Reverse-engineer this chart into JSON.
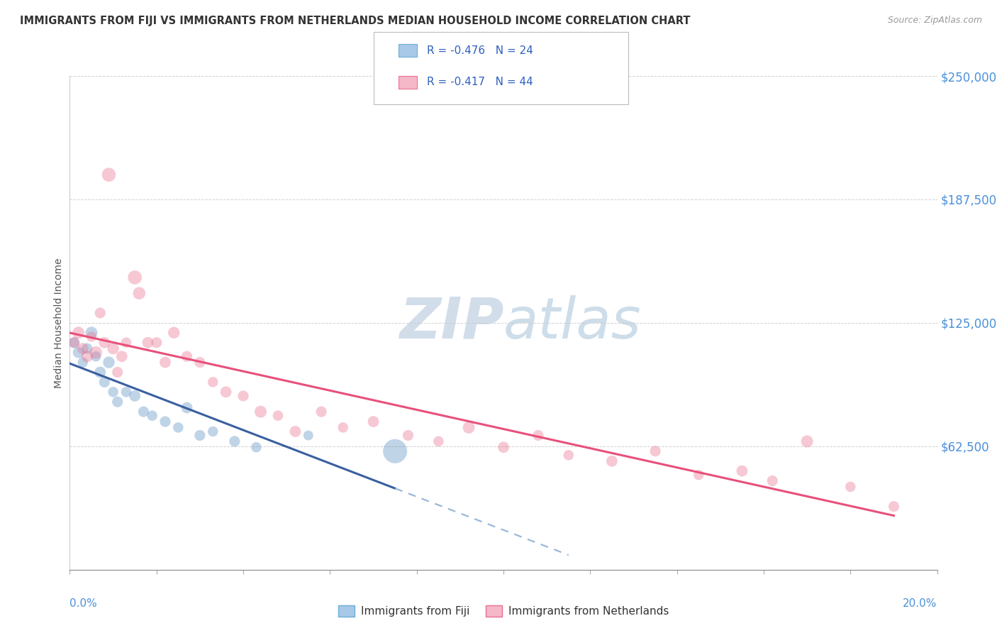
{
  "title": "IMMIGRANTS FROM FIJI VS IMMIGRANTS FROM NETHERLANDS MEDIAN HOUSEHOLD INCOME CORRELATION CHART",
  "source": "Source: ZipAtlas.com",
  "ylabel": "Median Household Income",
  "yticks": [
    0,
    62500,
    125000,
    187500,
    250000
  ],
  "ytick_labels": [
    "",
    "$62,500",
    "$125,000",
    "$187,500",
    "$250,000"
  ],
  "xlim": [
    0,
    0.2
  ],
  "ylim": [
    0,
    250000
  ],
  "series_fiji": {
    "R": -0.476,
    "N": 24,
    "x": [
      0.001,
      0.002,
      0.003,
      0.004,
      0.005,
      0.006,
      0.007,
      0.008,
      0.009,
      0.01,
      0.011,
      0.013,
      0.015,
      0.017,
      0.019,
      0.022,
      0.025,
      0.027,
      0.03,
      0.033,
      0.038,
      0.043,
      0.055,
      0.075
    ],
    "y": [
      115000,
      110000,
      105000,
      112000,
      120000,
      108000,
      100000,
      95000,
      105000,
      90000,
      85000,
      90000,
      88000,
      80000,
      78000,
      75000,
      72000,
      82000,
      68000,
      70000,
      65000,
      62000,
      68000,
      60000
    ],
    "sizes": [
      120,
      130,
      110,
      120,
      150,
      110,
      130,
      120,
      140,
      110,
      120,
      110,
      130,
      120,
      110,
      120,
      110,
      130,
      120,
      110,
      120,
      110,
      100,
      600
    ]
  },
  "series_netherlands": {
    "R": -0.417,
    "N": 44,
    "x": [
      0.001,
      0.002,
      0.003,
      0.004,
      0.005,
      0.006,
      0.007,
      0.008,
      0.009,
      0.01,
      0.011,
      0.012,
      0.013,
      0.015,
      0.016,
      0.018,
      0.02,
      0.022,
      0.024,
      0.027,
      0.03,
      0.033,
      0.036,
      0.04,
      0.044,
      0.048,
      0.052,
      0.058,
      0.063,
      0.07,
      0.078,
      0.085,
      0.092,
      0.1,
      0.108,
      0.115,
      0.125,
      0.135,
      0.145,
      0.155,
      0.162,
      0.17,
      0.18,
      0.19
    ],
    "y": [
      115000,
      120000,
      112000,
      108000,
      118000,
      110000,
      130000,
      115000,
      200000,
      112000,
      100000,
      108000,
      115000,
      148000,
      140000,
      115000,
      115000,
      105000,
      120000,
      108000,
      105000,
      95000,
      90000,
      88000,
      80000,
      78000,
      70000,
      80000,
      72000,
      75000,
      68000,
      65000,
      72000,
      62000,
      68000,
      58000,
      55000,
      60000,
      48000,
      50000,
      45000,
      65000,
      42000,
      32000
    ],
    "sizes": [
      120,
      150,
      130,
      140,
      110,
      160,
      120,
      130,
      200,
      140,
      120,
      130,
      110,
      200,
      160,
      130,
      120,
      130,
      140,
      120,
      120,
      110,
      130,
      120,
      150,
      110,
      130,
      120,
      110,
      130,
      120,
      110,
      150,
      130,
      120,
      110,
      130,
      120,
      110,
      130,
      120,
      150,
      110,
      120
    ]
  },
  "background_color": "#ffffff",
  "grid_color": "#cccccc",
  "title_color": "#333333",
  "axis_label_color": "#4a90d9",
  "watermark_color": "#cddae8",
  "fiji_scatter_color": "#5b8ec4",
  "netherlands_scatter_color": "#e87090",
  "fiji_line_color": "#3a5fa0",
  "netherlands_line_color": "#e8507a",
  "dashed_line_color": "#9ab8d8",
  "fiji_legend_fill": "#a8c8e8",
  "fiji_legend_edge": "#6baed6",
  "netherlands_legend_fill": "#f5b8c8",
  "netherlands_legend_edge": "#e87090"
}
